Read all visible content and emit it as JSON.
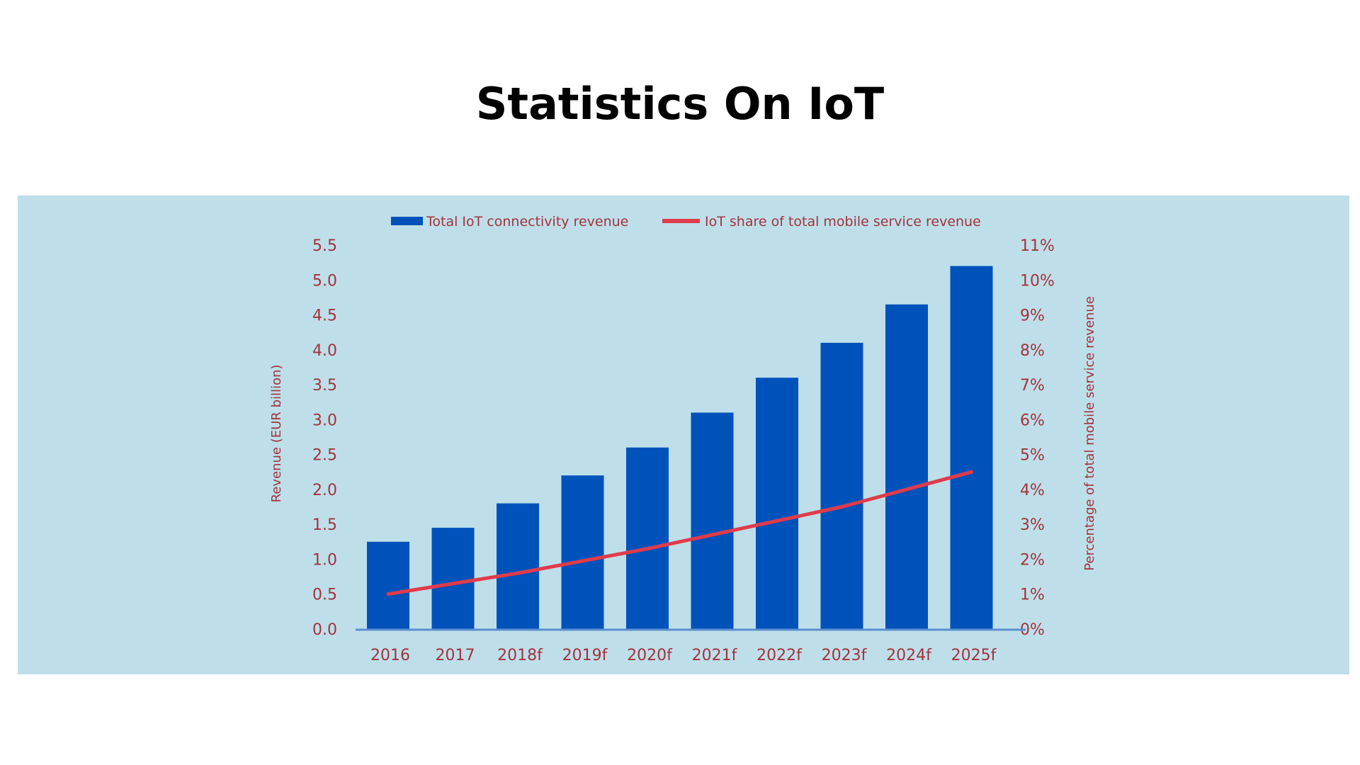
{
  "page": {
    "title": "Statistics On IoT"
  },
  "colors": {
    "panel_background": "#bedfe9",
    "bar": "#0052bb",
    "line": "#e03b4b",
    "text": "#a3333d",
    "baseline": "#5b8fcf"
  },
  "legend": {
    "bar_label": "Total IoT connectivity revenue",
    "line_label": "IoT share of total mobile service revenue"
  },
  "axes": {
    "left_title": "Revenue (EUR billion)",
    "right_title": "Percentage of total mobile service revenue",
    "left_ticks": [
      "0.0",
      "0.5",
      "1.0",
      "1.5",
      "2.0",
      "2.5",
      "3.0",
      "3.5",
      "4.0",
      "4.5",
      "5.0",
      "5.5"
    ],
    "right_ticks": [
      "0%",
      "1%",
      "2%",
      "3%",
      "4%",
      "5%",
      "6%",
      "7%",
      "8%",
      "9%",
      "10%",
      "11%"
    ],
    "x_ticks": [
      "2016",
      "2017",
      "2018f",
      "2019f",
      "2020f",
      "2021f",
      "2022f",
      "2023f",
      "2024f",
      "2025f"
    ]
  },
  "chart_data": {
    "type": "bar",
    "title": "Statistics On IoT",
    "categories": [
      "2016",
      "2017",
      "2018f",
      "2019f",
      "2020f",
      "2021f",
      "2022f",
      "2023f",
      "2024f",
      "2025f"
    ],
    "series": [
      {
        "name": "Total IoT connectivity revenue",
        "type": "bar",
        "axis": "left",
        "values": [
          1.25,
          1.45,
          1.8,
          2.2,
          2.6,
          3.1,
          3.6,
          4.1,
          4.65,
          5.2
        ]
      },
      {
        "name": "IoT share of total mobile service revenue",
        "type": "line",
        "axis": "right",
        "unit": "%",
        "values": [
          1.0,
          1.3,
          1.6,
          1.95,
          2.3,
          2.7,
          3.1,
          3.5,
          4.0,
          4.5
        ]
      }
    ],
    "xlabel": "",
    "ylabel": "Revenue (EUR billion)",
    "y2label": "Percentage of total mobile service revenue",
    "ylim": [
      0,
      5.5
    ],
    "y2lim": [
      0,
      11
    ],
    "grid": false,
    "legend_position": "top"
  }
}
